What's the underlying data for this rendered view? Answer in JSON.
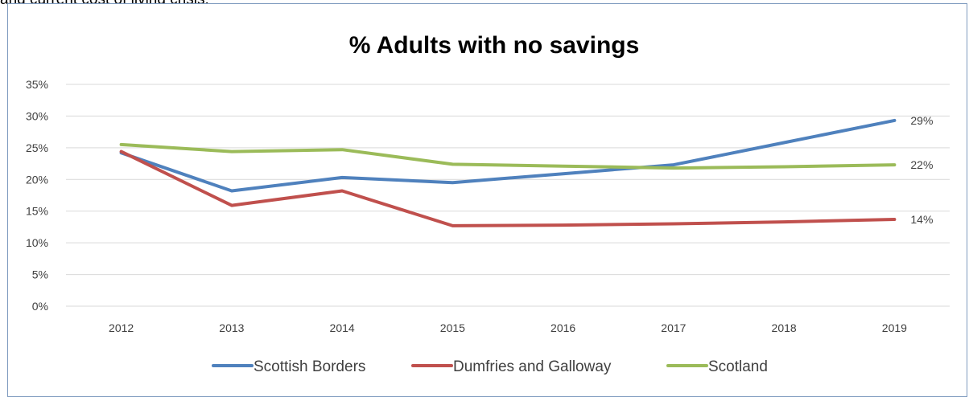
{
  "header": {
    "text": "and current cost of living crisis."
  },
  "colors": {
    "scottish_borders": "#4f81bd",
    "dumfries_and_galloway": "#c0504d",
    "scotland": "#9bbb59",
    "grid": "#d9d9d9",
    "frame": "#7f9bbf"
  },
  "chart_data": {
    "type": "line",
    "title": "% Adults with no savings",
    "x": [
      "2012",
      "2013",
      "2014",
      "2015",
      "2016",
      "2017",
      "2018",
      "2019"
    ],
    "y_ticks": [
      "0%",
      "5%",
      "10%",
      "15%",
      "20%",
      "25%",
      "30%",
      "35%"
    ],
    "ylim": [
      0,
      35
    ],
    "grid": true,
    "legend_position": "bottom",
    "series": [
      {
        "name": "Scottish Borders",
        "color": "#4f81bd",
        "values": [
          24.2,
          18.2,
          20.3,
          19.5,
          20.9,
          22.3,
          25.8,
          29.3
        ],
        "end_label": "29%"
      },
      {
        "name": "Dumfries and Galloway",
        "color": "#c0504d",
        "values": [
          24.4,
          15.9,
          18.2,
          12.7,
          12.8,
          13.0,
          13.3,
          13.7
        ],
        "end_label": "14%"
      },
      {
        "name": "Scotland",
        "color": "#9bbb59",
        "values": [
          25.5,
          24.4,
          24.7,
          22.4,
          22.1,
          21.8,
          22.0,
          22.3
        ],
        "end_label": "22%"
      }
    ]
  }
}
